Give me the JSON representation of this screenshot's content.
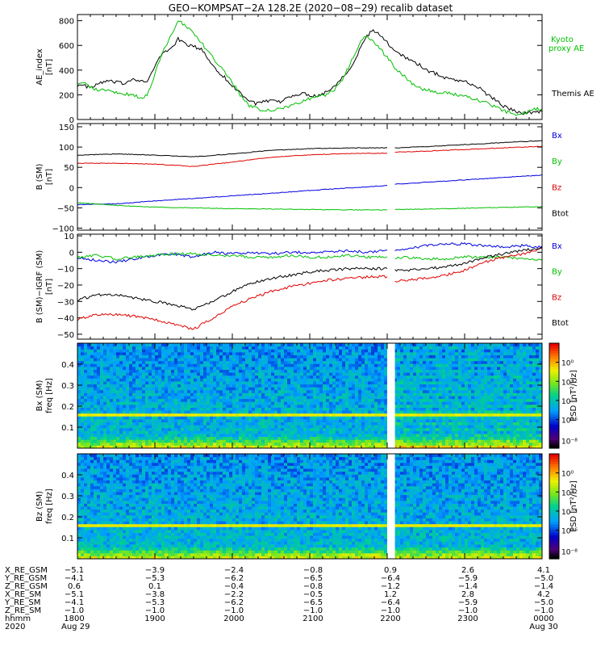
{
  "title": "GEO−KOMPSAT−2A 128.2E (2020−08−29) recalib dataset",
  "colors": {
    "black": "#000000",
    "red": "#e00000",
    "green": "#00c000",
    "blue": "#0000e0"
  },
  "chart_data": [
    {
      "type": "line",
      "panel": "ae",
      "ylabel": "AE_index",
      "yunit": "[nT]",
      "ylim": [
        0,
        850
      ],
      "yticks": [
        0,
        200,
        400,
        600,
        800
      ],
      "x_hours": [
        18.0,
        18.1,
        18.2,
        18.3,
        18.4,
        18.5,
        18.6,
        18.7,
        18.8,
        18.9,
        19.0,
        19.1,
        19.2,
        19.3,
        19.4,
        19.5,
        19.6,
        19.7,
        19.8,
        19.9,
        20.0,
        20.1,
        20.2,
        20.3,
        20.4,
        20.5,
        20.6,
        20.7,
        20.8,
        20.9,
        21.0,
        21.1,
        21.2,
        21.3,
        21.4,
        21.5,
        21.6,
        21.7,
        21.8,
        21.9,
        22.0,
        22.1,
        22.2,
        22.3,
        22.4,
        22.5,
        22.6,
        22.7,
        22.8,
        22.9,
        23.0,
        23.1,
        23.2,
        23.3,
        23.4,
        23.5,
        23.6,
        23.7,
        23.8,
        23.9,
        24.0
      ],
      "series": [
        {
          "name": "Themis AE",
          "color": "black",
          "values": [
            280,
            270,
            260,
            300,
            310,
            300,
            290,
            330,
            320,
            300,
            430,
            540,
            570,
            650,
            610,
            590,
            570,
            480,
            400,
            340,
            270,
            220,
            160,
            130,
            140,
            150,
            140,
            170,
            200,
            210,
            200,
            190,
            220,
            260,
            330,
            400,
            500,
            640,
            720,
            690,
            620,
            560,
            520,
            480,
            450,
            400,
            380,
            350,
            330,
            320,
            310,
            280,
            250,
            200,
            160,
            110,
            80,
            60,
            50,
            60,
            70
          ]
        },
        {
          "name": "Kyoto proxy AE",
          "color": "green",
          "values": [
            300,
            290,
            250,
            240,
            230,
            220,
            210,
            200,
            180,
            190,
            370,
            540,
            680,
            800,
            760,
            700,
            620,
            540,
            460,
            380,
            300,
            200,
            120,
            90,
            80,
            80,
            90,
            100,
            120,
            150,
            170,
            190,
            200,
            230,
            300,
            420,
            560,
            680,
            650,
            580,
            500,
            420,
            360,
            300,
            260,
            240,
            230,
            220,
            210,
            200,
            190,
            170,
            150,
            130,
            100,
            70,
            50,
            45,
            60,
            80,
            90
          ]
        }
      ]
    },
    {
      "type": "line",
      "panel": "b_sm",
      "ylabel": "B (SM)",
      "yunit": "[nT]",
      "ylim": [
        -105,
        158
      ],
      "yticks": [
        -100,
        -50,
        0,
        50,
        100,
        150
      ],
      "gap_hours": [
        22.0,
        22.1
      ],
      "x_hours": [
        18.0,
        18.5,
        19.0,
        19.5,
        20.0,
        20.5,
        21.0,
        21.5,
        22.0,
        22.1,
        22.5,
        23.0,
        23.5,
        24.0
      ],
      "series": [
        {
          "name": "Bx",
          "color": "blue",
          "values": [
            -42,
            -40,
            -33,
            -27,
            -20,
            -14,
            -7,
            -1,
            5,
            8,
            13,
            19,
            25,
            31
          ]
        },
        {
          "name": "By",
          "color": "green",
          "values": [
            -37,
            -44,
            -48,
            -50,
            -52,
            -53,
            -54,
            -55,
            -55,
            -54,
            -53,
            -51,
            -49,
            -47
          ]
        },
        {
          "name": "Bz",
          "color": "red",
          "values": [
            60,
            60,
            58,
            52,
            63,
            75,
            81,
            84,
            85,
            87,
            90,
            94,
            98,
            102
          ]
        },
        {
          "name": "Btot",
          "color": "black",
          "values": [
            80,
            83,
            80,
            76,
            83,
            92,
            96,
            98,
            98,
            98,
            101,
            106,
            111,
            116
          ]
        }
      ],
      "legend": [
        "Bx",
        "By",
        "Bz",
        "Btot"
      ]
    },
    {
      "type": "line",
      "panel": "b_igrf",
      "ylabel": "B (SM)−IGRF (SM)",
      "yunit": "[nT]",
      "ylim": [
        -53,
        11
      ],
      "yticks": [
        -50,
        -40,
        -30,
        -20,
        -10,
        0,
        10
      ],
      "gap_hours": [
        22.0,
        22.1
      ],
      "x_hours": [
        18.0,
        18.25,
        18.5,
        18.75,
        19.0,
        19.25,
        19.5,
        19.75,
        20.0,
        20.25,
        20.5,
        20.75,
        21.0,
        21.25,
        21.5,
        21.75,
        22.0,
        22.1,
        22.25,
        22.5,
        22.75,
        23.0,
        23.25,
        23.5,
        23.75,
        24.0
      ],
      "series": [
        {
          "name": "Bx",
          "color": "blue",
          "values": [
            -3,
            -5,
            -6,
            -4,
            -2,
            -1,
            -3,
            0,
            -1,
            0,
            -1,
            0,
            0,
            0,
            1,
            0,
            1,
            1,
            2,
            4,
            5,
            5,
            4,
            3,
            4,
            3
          ]
        },
        {
          "name": "By",
          "color": "green",
          "values": [
            -3,
            -2,
            -4,
            -3,
            -2,
            -1,
            -1,
            -2,
            -2,
            -3,
            -3,
            -2,
            -3,
            -3,
            -2,
            -3,
            -3,
            -4,
            -3,
            -4,
            -4,
            -3,
            -3,
            -3,
            -4,
            -5
          ]
        },
        {
          "name": "Bz",
          "color": "red",
          "values": [
            -41,
            -38,
            -38,
            -39,
            -41,
            -44,
            -47,
            -40,
            -33,
            -28,
            -24,
            -21,
            -19,
            -17,
            -16,
            -15,
            -15,
            -18,
            -17,
            -16,
            -14,
            -11,
            -6,
            -3,
            -1,
            2
          ]
        },
        {
          "name": "Btot",
          "color": "black",
          "values": [
            -29,
            -26,
            -26,
            -28,
            -30,
            -32,
            -35,
            -30,
            -24,
            -19,
            -16,
            -14,
            -12,
            -11,
            -10,
            -10,
            -10,
            -11,
            -11,
            -10,
            -9,
            -7,
            -3,
            -1,
            1,
            3
          ]
        }
      ],
      "legend": [
        "Bx",
        "By",
        "Bz",
        "Btot"
      ]
    },
    {
      "type": "heatmap",
      "panel": "spec_bx",
      "ylabel": "Bx (SM)",
      "yunit": "freq [Hz]",
      "ylim": [
        0,
        0.5
      ],
      "yticks": [
        0.1,
        0.2,
        0.3,
        0.4
      ],
      "gap_hours": [
        22.0,
        22.1
      ],
      "colorbar": {
        "label": "PSD [nT²/Hz]",
        "range_exp": [
          -9,
          2
        ],
        "ticks": [
          "10⁰",
          "10⁻²",
          "10⁻⁴",
          "10⁻⁶"
        ]
      }
    },
    {
      "type": "heatmap",
      "panel": "spec_bz",
      "ylabel": "Bz (SM)",
      "yunit": "freq [Hz]",
      "ylim": [
        0,
        0.5
      ],
      "yticks": [
        0.1,
        0.2,
        0.3,
        0.4
      ],
      "gap_hours": [
        22.0,
        22.1
      ],
      "colorbar": {
        "label": "PSD [nT²/Hz]",
        "range_exp": [
          -9,
          2
        ],
        "ticks": [
          "10⁰",
          "10⁻²",
          "10⁻⁴",
          "10⁻⁶"
        ]
      }
    }
  ],
  "ae_legend": {
    "kyoto": "Kyoto proxy AE",
    "themis": "Themis AE"
  },
  "ephemeris": {
    "rows": [
      {
        "label": "X_RE_GSM",
        "values": [
          "−5.1",
          "−3.9",
          "−2.4",
          "−0.8",
          "0.9",
          "2.6",
          "4.1"
        ]
      },
      {
        "label": "Y_RE_GSM",
        "values": [
          "−4.1",
          "−5.3",
          "−6.2",
          "−6.5",
          "−6.4",
          "−5.9",
          "−5.0"
        ]
      },
      {
        "label": "Z_RE_GSM",
        "values": [
          "0.6",
          "0.1",
          "−0.4",
          "−0.8",
          "−1.2",
          "−1.4",
          "−1.4"
        ]
      },
      {
        "label": "X_RE_SM",
        "values": [
          "−5.1",
          "−3.8",
          "−2.2",
          "−0.5",
          "1.2",
          "2.8",
          "4.2"
        ]
      },
      {
        "label": "Y_RE_SM",
        "values": [
          "−4.1",
          "−5.3",
          "−6.2",
          "−6.5",
          "−6.4",
          "−5.9",
          "−5.0"
        ]
      },
      {
        "label": "Z_RE_SM",
        "values": [
          "−1.0",
          "−1.0",
          "−1.0",
          "−1.0",
          "−1.0",
          "−1.0",
          "−1.0"
        ]
      },
      {
        "label": "hhmm",
        "values": [
          "1800",
          "1900",
          "2000",
          "2100",
          "2200",
          "2300",
          "0000"
        ]
      },
      {
        "label": "2020",
        "values": [
          "Aug 29",
          "",
          "",
          "",
          "",
          "",
          "Aug 30"
        ]
      }
    ]
  }
}
